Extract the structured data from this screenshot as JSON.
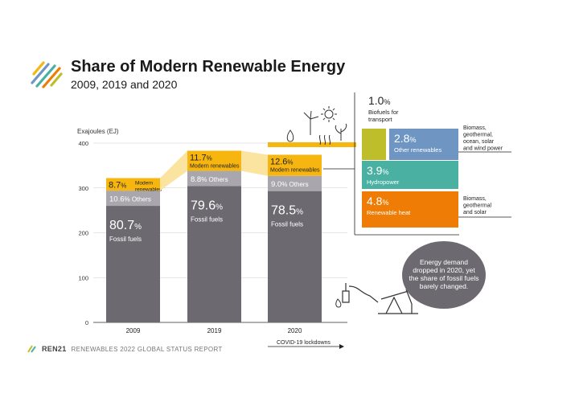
{
  "title": "Share of Modern Renewable Energy",
  "subtitle": "2009, 2019 and 2020",
  "footer": {
    "brand": "REN21",
    "report": "RENEWABLES 2022 GLOBAL STATUS REPORT"
  },
  "note": "Energy demand dropped in 2020, yet the share of fossil fuels barely changed.",
  "covid_label": "COVID-19 lockdowns",
  "colors": {
    "fossil": "#6c6a70",
    "others": "#a9a7ad",
    "renewables": "#f6b60f",
    "biofuels": "#bdbe2a",
    "other_renewables": "#6f95c3",
    "hydropower": "#4ab0a2",
    "renewable_heat": "#ef7d05"
  },
  "chart_data": {
    "type": "bar",
    "ylabel": "Exajoules (EJ)",
    "ylim": [
      0,
      400
    ],
    "yticks": [
      0,
      100,
      200,
      300,
      400
    ],
    "categories": [
      "2009",
      "2019",
      "2020"
    ],
    "series": [
      {
        "name": "Fossil fuels",
        "values": [
          260,
          304,
          293
        ],
        "share_labels": [
          "80.7",
          "79.6",
          "78.5"
        ]
      },
      {
        "name": "Others",
        "values": [
          34,
          34,
          34
        ],
        "share_labels": [
          "10.6",
          "8.8",
          "9.0"
        ]
      },
      {
        "name": "Modern renewables",
        "values": [
          28,
          45,
          47
        ],
        "share_labels": [
          "8.7",
          "11.7",
          "12.6"
        ]
      }
    ],
    "breakdown_2020": [
      {
        "value": "1.0",
        "label": "Biofuels for transport",
        "side_label": ""
      },
      {
        "value": "2.8",
        "label": "Other renewables",
        "side_label": "Biomass, geothermal, ocean, solar and wind power"
      },
      {
        "value": "3.9",
        "label": "Hydropower",
        "side_label": ""
      },
      {
        "value": "4.8",
        "label": "Renewable heat",
        "side_label": "Biomass, geothermal and solar"
      }
    ]
  }
}
